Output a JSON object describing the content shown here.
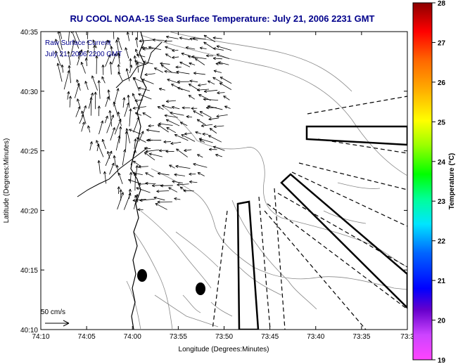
{
  "chart_data": {
    "type": "vector-field",
    "title": "RU COOL  NOAA-15  Sea Surface Temperature:  July 21, 2006 2231 GMT",
    "xlabel": "Longitude (Degrees:Minutes)",
    "ylabel": "Latitude (Degrees:Minutes)",
    "x_tick_labels": [
      "74:10",
      "74:05",
      "74:00",
      "73:55",
      "73:50",
      "73:45",
      "73:40",
      "73:35",
      "73:3"
    ],
    "y_tick_labels": [
      "40:35",
      "40:30",
      "40:25",
      "40:20",
      "40:15",
      "40:10"
    ],
    "xlim_minutes_west": [
      70,
      30
    ],
    "ylim_minutes_north": [
      10,
      35
    ],
    "annotation_lines": [
      "Raw Surface Current",
      "July 21, 2006 2200 GMT"
    ],
    "scale_label": "50 cm/s",
    "colorbar": {
      "label": "Temperature (°C)",
      "range": [
        19,
        28
      ],
      "ticks": [
        "19",
        "20",
        "21",
        "22",
        "23",
        "24",
        "25",
        "26",
        "27",
        "28"
      ]
    },
    "grid": false,
    "colors": {
      "title": "#00008b",
      "land_outline": "#000000",
      "bathymetry": "#888888",
      "vectors": "#000000"
    }
  }
}
